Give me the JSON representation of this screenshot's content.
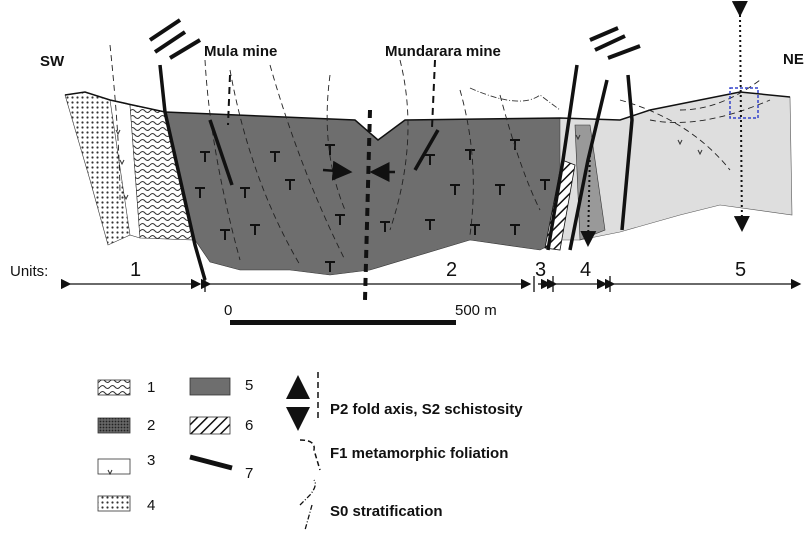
{
  "labels": {
    "sw": "SW",
    "ne": "NE",
    "mula": "Mula mine",
    "mundarara": "Mundarara mine"
  },
  "units": {
    "title": "Units:",
    "items": [
      "1",
      "2",
      "3",
      "4",
      "5"
    ]
  },
  "scale": {
    "start": "0",
    "end": "500 m"
  },
  "legend": {
    "items": [
      "1",
      "2",
      "3",
      "4",
      "5",
      "6",
      "7"
    ],
    "symbols": [
      "P2 fold axis, S2 schistosity",
      "F1 metamorphic foliation",
      "S0 stratification"
    ]
  }
}
